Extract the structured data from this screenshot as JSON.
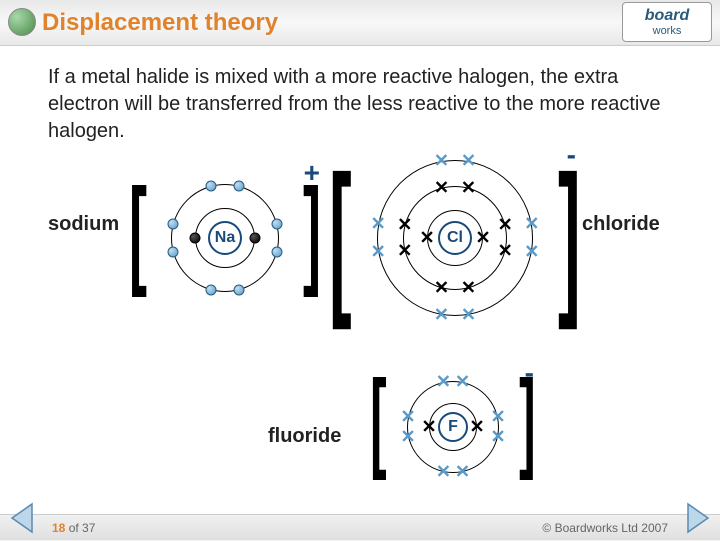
{
  "header": {
    "title": "Displacement theory",
    "title_color": "#e0832c",
    "logo_top": "board",
    "logo_bottom": "works"
  },
  "body": {
    "text": "If a metal halide is mixed with a more reactive halogen, the extra electron will be transferred from the less reactive to the more reactive halogen."
  },
  "labels": {
    "sodium": "sodium",
    "chloride": "chloride",
    "fluoride": "fluoride"
  },
  "charges": {
    "na": "+",
    "cl": "-",
    "f": "-",
    "plus_color": "#1a4a7a",
    "minus_color": "#1a4a7a"
  },
  "atoms": {
    "na": {
      "symbol": "Na",
      "symbol_color": "#1a4a7a",
      "nucleus_border": "#1a4a7a",
      "shells": [
        {
          "r": 30
        },
        {
          "r": 54
        }
      ],
      "electrons": [
        {
          "shell": 0,
          "angle": 90,
          "type": "black"
        },
        {
          "shell": 0,
          "angle": 270,
          "type": "black"
        },
        {
          "shell": 1,
          "angle": 75,
          "type": "blue"
        },
        {
          "shell": 1,
          "angle": 105,
          "type": "blue"
        },
        {
          "shell": 1,
          "angle": 165,
          "type": "blue"
        },
        {
          "shell": 1,
          "angle": 195,
          "type": "blue"
        },
        {
          "shell": 1,
          "angle": 255,
          "type": "blue"
        },
        {
          "shell": 1,
          "angle": 285,
          "type": "blue"
        },
        {
          "shell": 1,
          "angle": 345,
          "type": "blue"
        },
        {
          "shell": 1,
          "angle": 15,
          "type": "blue"
        }
      ]
    },
    "cl": {
      "symbol": "Cl",
      "symbol_color": "#1a4a7a",
      "nucleus_border": "#1a4a7a",
      "shells": [
        {
          "r": 28
        },
        {
          "r": 52
        },
        {
          "r": 78
        }
      ],
      "electrons": [
        {
          "shell": 0,
          "angle": 90,
          "type": "x-black"
        },
        {
          "shell": 0,
          "angle": 270,
          "type": "x-black"
        },
        {
          "shell": 1,
          "angle": 75,
          "type": "x-black"
        },
        {
          "shell": 1,
          "angle": 105,
          "type": "x-black"
        },
        {
          "shell": 1,
          "angle": 165,
          "type": "x-black"
        },
        {
          "shell": 1,
          "angle": 195,
          "type": "x-black"
        },
        {
          "shell": 1,
          "angle": 255,
          "type": "x-black"
        },
        {
          "shell": 1,
          "angle": 285,
          "type": "x-black"
        },
        {
          "shell": 1,
          "angle": 345,
          "type": "x-black"
        },
        {
          "shell": 1,
          "angle": 15,
          "type": "x-black"
        },
        {
          "shell": 2,
          "angle": 80,
          "type": "x-blue"
        },
        {
          "shell": 2,
          "angle": 100,
          "type": "x-blue"
        },
        {
          "shell": 2,
          "angle": 170,
          "type": "x-blue"
        },
        {
          "shell": 2,
          "angle": 190,
          "type": "x-blue"
        },
        {
          "shell": 2,
          "angle": 260,
          "type": "x-blue"
        },
        {
          "shell": 2,
          "angle": 280,
          "type": "x-blue"
        },
        {
          "shell": 2,
          "angle": 350,
          "type": "x-blue"
        },
        {
          "shell": 2,
          "angle": 10,
          "type": "x-blue"
        }
      ]
    },
    "f": {
      "symbol": "F",
      "symbol_color": "#1a4a7a",
      "nucleus_border": "#1a4a7a",
      "shells": [
        {
          "r": 24
        },
        {
          "r": 46
        }
      ],
      "electrons": [
        {
          "shell": 0,
          "angle": 90,
          "type": "x-black"
        },
        {
          "shell": 0,
          "angle": 270,
          "type": "x-black"
        },
        {
          "shell": 1,
          "angle": 78,
          "type": "x-blue"
        },
        {
          "shell": 1,
          "angle": 102,
          "type": "x-blue"
        },
        {
          "shell": 1,
          "angle": 168,
          "type": "x-blue"
        },
        {
          "shell": 1,
          "angle": 192,
          "type": "x-blue"
        },
        {
          "shell": 1,
          "angle": 258,
          "type": "x-blue"
        },
        {
          "shell": 1,
          "angle": 282,
          "type": "x-blue"
        },
        {
          "shell": 1,
          "angle": 348,
          "type": "x-blue"
        },
        {
          "shell": 1,
          "angle": 12,
          "type": "x-blue"
        }
      ]
    }
  },
  "colors": {
    "x_black": "#000000",
    "x_blue": "#5a9ac8"
  },
  "footer": {
    "page": "18",
    "of": " of 37",
    "copyright": "© Boardworks Ltd 2007"
  }
}
